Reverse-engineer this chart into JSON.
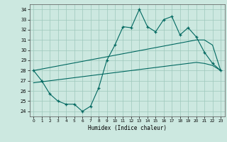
{
  "title": "",
  "xlabel": "Humidex (Indice chaleur)",
  "background_color": "#cce8e0",
  "grid_color": "#9ec8bc",
  "line_color": "#006860",
  "xlim": [
    -0.5,
    23.5
  ],
  "ylim": [
    23.5,
    34.5
  ],
  "yticks": [
    24,
    25,
    26,
    27,
    28,
    29,
    30,
    31,
    32,
    33,
    34
  ],
  "xticks": [
    0,
    1,
    2,
    3,
    4,
    5,
    6,
    7,
    8,
    9,
    10,
    11,
    12,
    13,
    14,
    15,
    16,
    17,
    18,
    19,
    20,
    21,
    22,
    23
  ],
  "main_line": [
    28.0,
    27.0,
    25.7,
    25.0,
    24.7,
    24.7,
    24.0,
    24.5,
    26.3,
    29.0,
    30.5,
    32.3,
    32.2,
    34.0,
    32.3,
    31.8,
    33.0,
    33.3,
    31.5,
    32.2,
    31.3,
    29.8,
    28.7,
    28.0
  ],
  "upper_line": [
    28.0,
    28.15,
    28.3,
    28.45,
    28.6,
    28.75,
    28.9,
    29.05,
    29.2,
    29.35,
    29.5,
    29.65,
    29.8,
    29.95,
    30.1,
    30.25,
    30.4,
    30.55,
    30.7,
    30.85,
    31.0,
    31.0,
    30.5,
    28.0
  ],
  "lower_line": [
    26.8,
    26.9,
    27.0,
    27.1,
    27.2,
    27.3,
    27.4,
    27.5,
    27.6,
    27.7,
    27.8,
    27.9,
    28.0,
    28.1,
    28.2,
    28.3,
    28.4,
    28.5,
    28.6,
    28.7,
    28.8,
    28.7,
    28.5,
    28.0
  ]
}
